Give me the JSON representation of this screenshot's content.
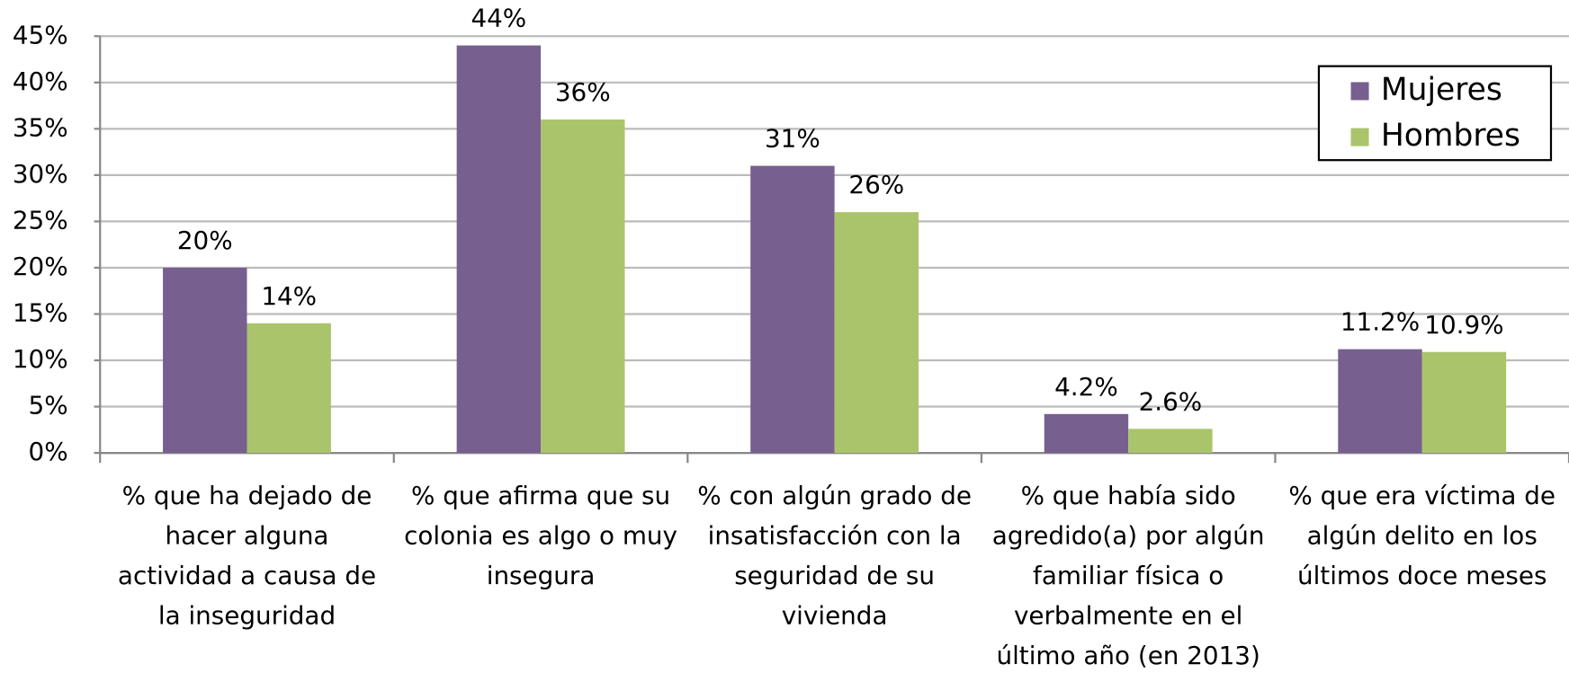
{
  "chart_data": {
    "type": "bar",
    "categories": [
      "% que ha dejado de hacer alguna actividad a causa de la inseguridad",
      "% que afirma que su colonia es algo o muy insegura",
      "% con algún grado de insatisfacción con la seguridad de su vivienda",
      "% que había sido agredido(a) por algún familiar física o verbalmente en el último año (en 2013)",
      "% que era víctima de algún delito en los últimos doce meses"
    ],
    "series": [
      {
        "name": "Mujeres",
        "color": "#775f8f",
        "values": [
          20,
          44,
          31,
          4.2,
          11.2
        ],
        "value_labels": [
          "20%",
          "44%",
          "31%",
          "4.2%",
          "11.2%"
        ]
      },
      {
        "name": "Hombres",
        "color": "#aac46c",
        "values": [
          14,
          36,
          26,
          2.6,
          10.9
        ],
        "value_labels": [
          "14%",
          "36%",
          "26%",
          "2.6%",
          "10.9%"
        ]
      }
    ],
    "ylim": [
      0,
      45
    ],
    "yticks": [
      {
        "value": 0,
        "label": "0%"
      },
      {
        "value": 5,
        "label": "5%"
      },
      {
        "value": 10,
        "label": "10%"
      },
      {
        "value": 15,
        "label": "15%"
      },
      {
        "value": 20,
        "label": "20%"
      },
      {
        "value": 25,
        "label": "25%"
      },
      {
        "value": 30,
        "label": "30%"
      },
      {
        "value": 35,
        "label": "35%"
      },
      {
        "value": 40,
        "label": "40%"
      },
      {
        "value": 45,
        "label": "45%"
      }
    ],
    "grid": true,
    "legend": "top-right"
  }
}
